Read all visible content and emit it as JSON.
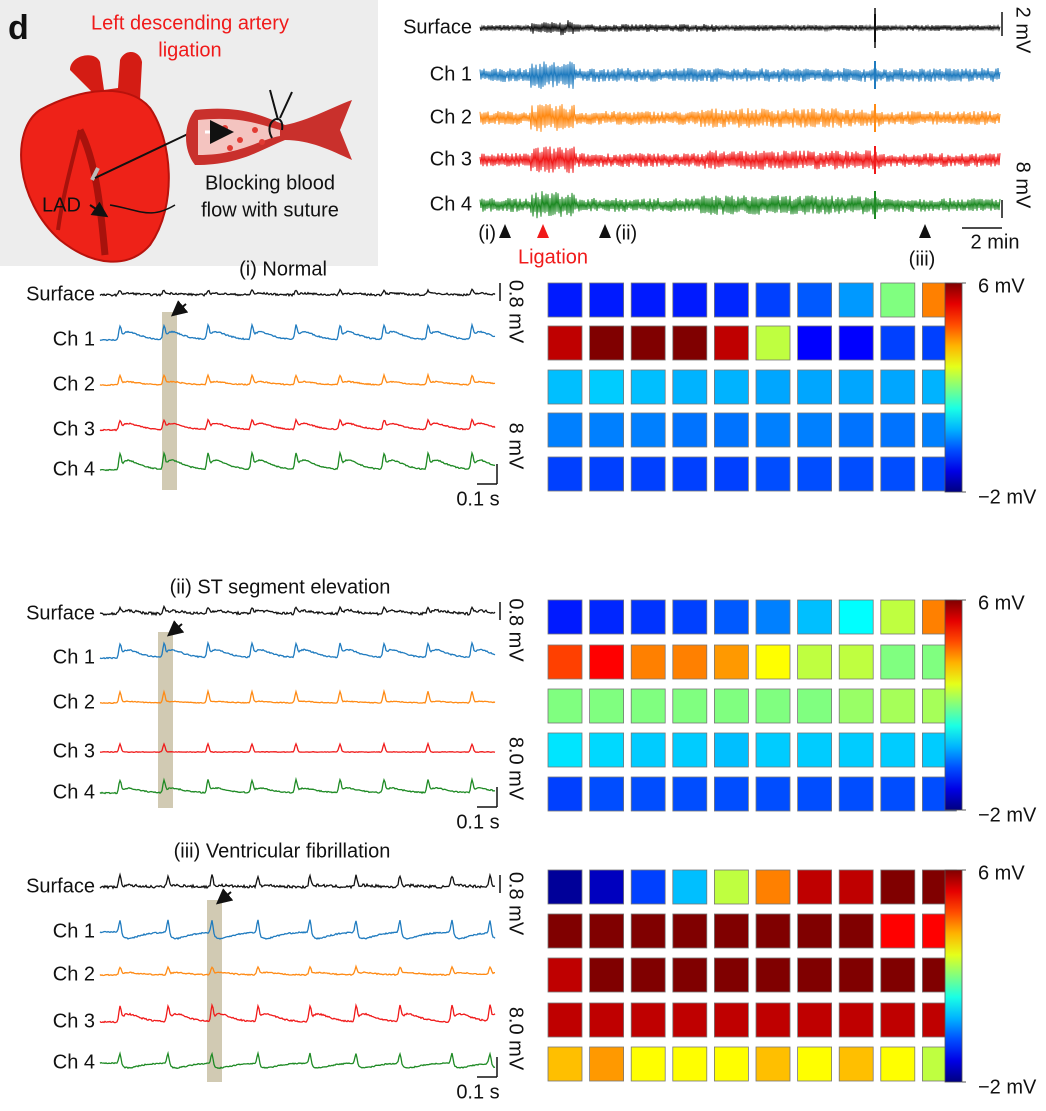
{
  "panel_label": "d",
  "illustration": {
    "title_lines": [
      "Left descending artery",
      "ligation"
    ],
    "caption_lines": [
      "Blocking blood",
      "flow with suture"
    ],
    "vessel_label": "LAD"
  },
  "overview": {
    "channels": [
      "Surface",
      "Ch 1",
      "Ch 2",
      "Ch 3",
      "Ch 4"
    ],
    "channel_colors": [
      "#111111",
      "#1f7bbf",
      "#ff8a14",
      "#f01a1a",
      "#1e8a24"
    ],
    "scale_bars": [
      "2 mV",
      "8 mV",
      "2 min"
    ],
    "markers": [
      "(i)",
      "(ii)",
      "(iii)"
    ],
    "event_label": "Ligation"
  },
  "colorbar": {
    "colormap": "jet",
    "clim": [
      -2,
      6
    ],
    "ticks": [
      {
        "value": 6,
        "label": "6 mV"
      },
      {
        "value": -2,
        "label": "−2 mV"
      }
    ]
  },
  "sections": [
    {
      "title": "(i) Normal",
      "scale_bars": [
        "0.8 mV",
        "8 mV",
        "0.1 s"
      ],
      "heatmap": [
        [
          -0.8,
          -0.8,
          -0.8,
          -0.8,
          -0.7,
          -0.5,
          -0.3,
          0.2,
          2,
          4
        ],
        [
          5.5,
          6,
          6,
          6,
          5.5,
          2.5,
          -1,
          -1,
          -0.5,
          -0.5
        ],
        [
          0.5,
          0.6,
          0.5,
          0.4,
          0.4,
          0.3,
          0.3,
          0.3,
          0.3,
          0.4
        ],
        [
          0,
          0,
          0,
          -0.1,
          -0.1,
          0,
          0,
          -0.1,
          -0.1,
          0
        ],
        [
          -0.5,
          -0.5,
          -0.5,
          -0.5,
          -0.5,
          -0.4,
          -0.4,
          -0.4,
          -0.4,
          -0.4
        ]
      ]
    },
    {
      "title": "(ii) ST segment elevation",
      "scale_bars": [
        "0.8 mV",
        "8.0 mV",
        "0.1 s"
      ],
      "heatmap": [
        [
          -0.8,
          -0.7,
          -0.6,
          -0.5,
          -0.3,
          0,
          0.5,
          1,
          2.5,
          4
        ],
        [
          4.5,
          5,
          4,
          4,
          3.8,
          3,
          2.5,
          2.5,
          2,
          2
        ],
        [
          2,
          2,
          2,
          2,
          2,
          2,
          2,
          2.2,
          2.3,
          2.3
        ],
        [
          0.8,
          0.7,
          0.6,
          0.6,
          0.5,
          0.6,
          0.6,
          0.6,
          0.6,
          0.6
        ],
        [
          -0.5,
          -0.4,
          -0.4,
          -0.4,
          -0.4,
          -0.4,
          -0.4,
          -0.4,
          -0.4,
          -0.4
        ]
      ]
    },
    {
      "title": "(iii) Ventricular fibrillation",
      "scale_bars": [
        "0.8 mV",
        "8.0 mV",
        "0.1 s"
      ],
      "heatmap": [
        [
          -1.8,
          -1.5,
          -0.5,
          0.5,
          2.5,
          4,
          5.5,
          5.5,
          6,
          6
        ],
        [
          6,
          6,
          6,
          6,
          6,
          6,
          6,
          6,
          5,
          5
        ],
        [
          5.5,
          6,
          6,
          6,
          6,
          6,
          6,
          6,
          6,
          6
        ],
        [
          5.5,
          5.5,
          5.5,
          5.5,
          5.5,
          5.5,
          5.5,
          5.5,
          5.5,
          5.5
        ],
        [
          3.5,
          3.8,
          3,
          3,
          3,
          3.5,
          3,
          3.5,
          3,
          2.5
        ]
      ]
    }
  ]
}
